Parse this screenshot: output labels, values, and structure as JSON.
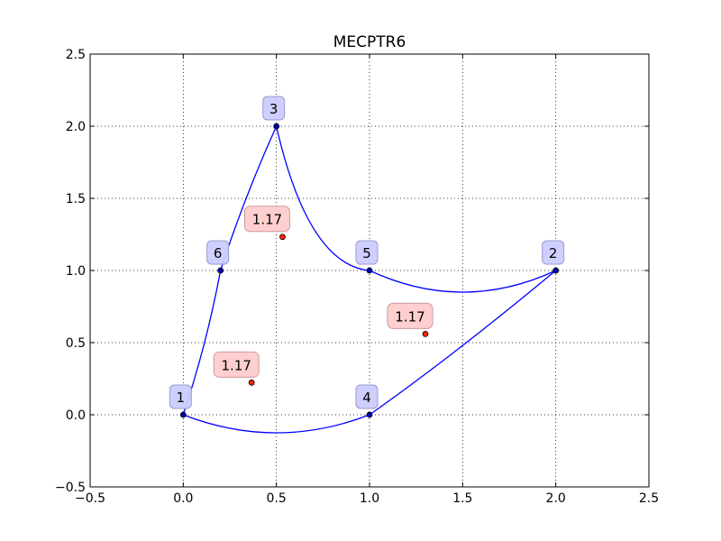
{
  "chart_data": {
    "type": "scatter",
    "title": "MECPTR6",
    "xlabel": "",
    "ylabel": "",
    "xlim": [
      -0.5,
      2.5
    ],
    "ylim": [
      -0.5,
      2.5
    ],
    "grid": true,
    "xticks": [
      -0.5,
      0.0,
      0.5,
      1.0,
      1.5,
      2.0,
      2.5
    ],
    "yticks": [
      -0.5,
      0.0,
      0.5,
      1.0,
      1.5,
      2.0,
      2.5
    ],
    "xtick_labels": [
      "−0.5",
      "0.0",
      "0.5",
      "1.0",
      "1.5",
      "2.0",
      "2.5"
    ],
    "ytick_labels": [
      "−0.5",
      "0.0",
      "0.5",
      "1.0",
      "1.5",
      "2.0",
      "2.5"
    ],
    "nodes": [
      {
        "label": "1",
        "x": 0.0,
        "y": 0.0
      },
      {
        "label": "2",
        "x": 2.0,
        "y": 1.0
      },
      {
        "label": "3",
        "x": 0.5,
        "y": 2.0
      },
      {
        "label": "4",
        "x": 1.0,
        "y": 0.0
      },
      {
        "label": "5",
        "x": 1.0,
        "y": 1.0
      },
      {
        "label": "6",
        "x": 0.2,
        "y": 1.0
      }
    ],
    "elements": [
      {
        "label": "1.17",
        "x": 0.533,
        "y": 1.233
      },
      {
        "label": "1.17",
        "x": 1.3,
        "y": 0.56
      },
      {
        "label": "1.17",
        "x": 0.367,
        "y": 0.223
      }
    ],
    "edges": [
      {
        "from": "1",
        "to": "6",
        "control": {
          "x": 0.128,
          "y": 0.5
        }
      },
      {
        "from": "6",
        "to": "3",
        "control": {
          "x": 0.325,
          "y": 1.5
        }
      },
      {
        "from": "3",
        "to": "5",
        "control": {
          "x": 0.67,
          "y": 1.04
        }
      },
      {
        "from": "5",
        "to": "2",
        "control": {
          "x": 1.5,
          "y": 0.7
        }
      },
      {
        "from": "2",
        "to": "4",
        "control": {
          "x": 1.45,
          "y": 0.41
        }
      },
      {
        "from": "4",
        "to": "1",
        "control": {
          "x": 0.5,
          "y": -0.25
        }
      }
    ],
    "colors": {
      "edge": "#0000ff",
      "node_fill": "#0000aa",
      "node_label_bg": "#ccccff",
      "element_fill": "#ff2200",
      "element_label_bg": "#ffcccc",
      "grid": "#000000"
    }
  }
}
